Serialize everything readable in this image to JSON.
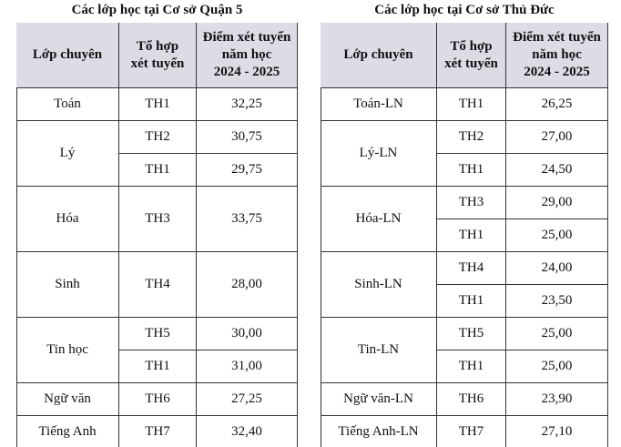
{
  "left": {
    "title": "Các lớp học tại Cơ sở Quận 5",
    "headers": [
      [
        "Lớp chuyên"
      ],
      [
        "Tổ hợp",
        "xét tuyển"
      ],
      [
        "Điểm xét tuyển",
        "năm học",
        "2024 - 2025"
      ]
    ],
    "rows": [
      {
        "subject": "Toán",
        "combos": [
          "TH1"
        ],
        "scores": [
          "32,25"
        ]
      },
      {
        "subject": "Lý",
        "combos": [
          "TH2",
          "TH1"
        ],
        "scores": [
          "30,75",
          "29,75"
        ]
      },
      {
        "subject": "Hóa",
        "combos": [
          "TH3"
        ],
        "scores": [
          "33,75"
        ]
      },
      {
        "subject": "Sinh",
        "combos": [
          "TH4"
        ],
        "scores": [
          "28,00"
        ]
      },
      {
        "subject": "Tin học",
        "combos": [
          "TH5",
          "TH1"
        ],
        "scores": [
          "30,00",
          "31,00"
        ]
      },
      {
        "subject": "Ngữ văn",
        "combos": [
          "TH6"
        ],
        "scores": [
          "27,25"
        ]
      },
      {
        "subject": "Tiếng Anh",
        "combos": [
          "TH7"
        ],
        "scores": [
          "32,40"
        ]
      }
    ]
  },
  "right": {
    "title": "Các lớp học tại Cơ sở Thủ Đức",
    "headers": [
      [
        "Lớp chuyên"
      ],
      [
        "Tổ hợp",
        "xét tuyển"
      ],
      [
        "Điểm xét tuyển",
        "năm học",
        "2024 - 2025"
      ]
    ],
    "rows": [
      {
        "subject": "Toán-LN",
        "combos": [
          "TH1"
        ],
        "scores": [
          "26,25"
        ]
      },
      {
        "subject": "Lý-LN",
        "combos": [
          "TH2",
          "TH1"
        ],
        "scores": [
          "27,00",
          "24,50"
        ]
      },
      {
        "subject": "Hóa-LN",
        "combos": [
          "TH3",
          "TH1"
        ],
        "scores": [
          "29,00",
          "25,00"
        ]
      },
      {
        "subject": "Sinh-LN",
        "combos": [
          "TH4",
          "TH1"
        ],
        "scores": [
          "24,00",
          "23,50"
        ]
      },
      {
        "subject": "Tin-LN",
        "combos": [
          "TH5",
          "TH1"
        ],
        "scores": [
          "25,00",
          "25,00"
        ]
      },
      {
        "subject": "Ngữ văn-LN",
        "combos": [
          "TH6"
        ],
        "scores": [
          "23,90"
        ]
      },
      {
        "subject": "Tiếng Anh-LN",
        "combos": [
          "TH7"
        ],
        "scores": [
          "27,10"
        ]
      }
    ]
  }
}
